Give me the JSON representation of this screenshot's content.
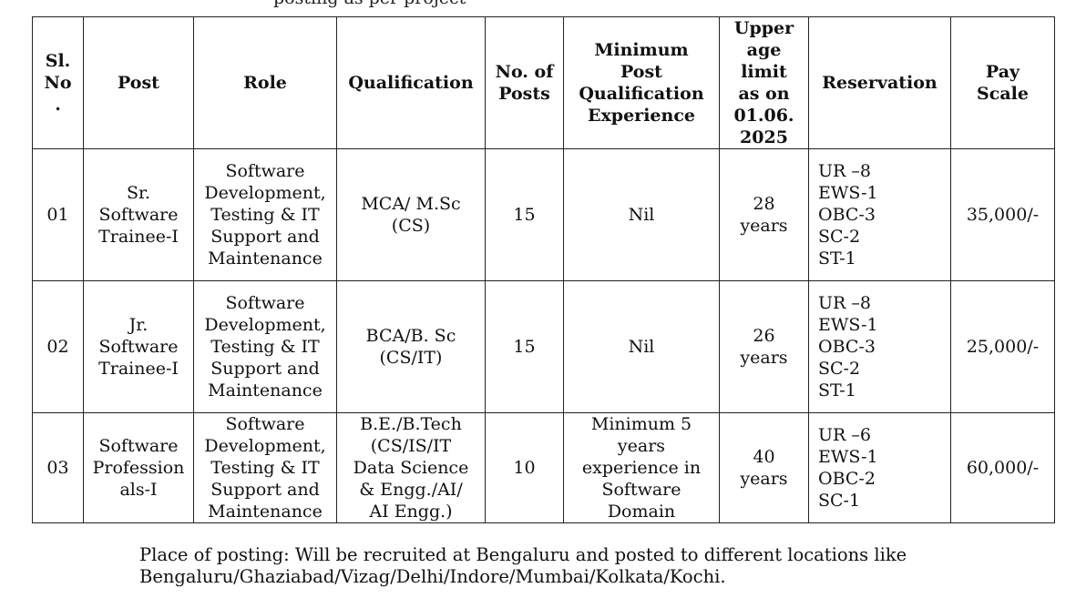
{
  "top_fragment": "posting as per project",
  "table": {
    "headers": {
      "sl_no": [
        "Sl.",
        "No",
        "."
      ],
      "post": [
        "Post"
      ],
      "role": [
        "Role"
      ],
      "qualification": [
        "Qualification"
      ],
      "no_of_posts": [
        "No. of",
        "Posts"
      ],
      "min_experience": [
        "Minimum",
        "Post",
        "Qualification",
        "Experience"
      ],
      "age_limit": [
        "Upper",
        "age",
        "limit",
        "as on",
        "01.06.",
        "2025"
      ],
      "reservation": [
        "Reservation"
      ],
      "pay_scale": [
        "Pay",
        "Scale"
      ]
    },
    "rows": [
      {
        "sl_no": "01",
        "post": [
          "Sr.",
          "Software",
          "Trainee-I"
        ],
        "role": [
          "Software",
          "Development,",
          "Testing & IT",
          "Support and",
          "Maintenance"
        ],
        "qualification": [
          "MCA/ M.Sc",
          "(CS)"
        ],
        "posts": "15",
        "experience": [
          "Nil"
        ],
        "age": [
          "28",
          "years"
        ],
        "reservation": [
          "UR –8",
          "EWS-1",
          "OBC-3",
          "SC-2",
          "ST-1"
        ],
        "pay": "35,000/-"
      },
      {
        "sl_no": "02",
        "post": [
          "Jr.",
          "Software",
          "Trainee-I"
        ],
        "role": [
          "Software",
          "Development,",
          "Testing & IT",
          "Support and",
          "Maintenance"
        ],
        "qualification": [
          "BCA/B. Sc",
          "(CS/IT)"
        ],
        "posts": "15",
        "experience": [
          "Nil"
        ],
        "age": [
          "26",
          "years"
        ],
        "reservation": [
          "UR –8",
          "EWS-1",
          "OBC-3",
          "SC-2",
          "ST-1"
        ],
        "pay": "25,000/-"
      },
      {
        "sl_no": "03",
        "post": [
          "Software",
          "Profession",
          "als-I"
        ],
        "role": [
          "Software",
          "Development,",
          "Testing & IT",
          "Support and",
          "Maintenance"
        ],
        "qualification": [
          "B.E./B.Tech",
          "(CS/IS/IT",
          "Data Science",
          "& Engg./AI/",
          "AI Engg.)"
        ],
        "posts": "10",
        "experience": [
          "Minimum 5",
          "years",
          "experience in",
          "Software",
          "Domain"
        ],
        "age": [
          "40",
          "years"
        ],
        "reservation": [
          "UR –6",
          "EWS-1",
          "OBC-2",
          "SC-1"
        ],
        "pay": "60,000/-"
      }
    ]
  },
  "footer": {
    "line1": "Place of posting:  Will be recruited at Bengaluru and posted to different locations like",
    "line2": "Bengaluru/Ghaziabad/Vizag/Delhi/Indore/Mumbai/Kolkata/Kochi."
  }
}
